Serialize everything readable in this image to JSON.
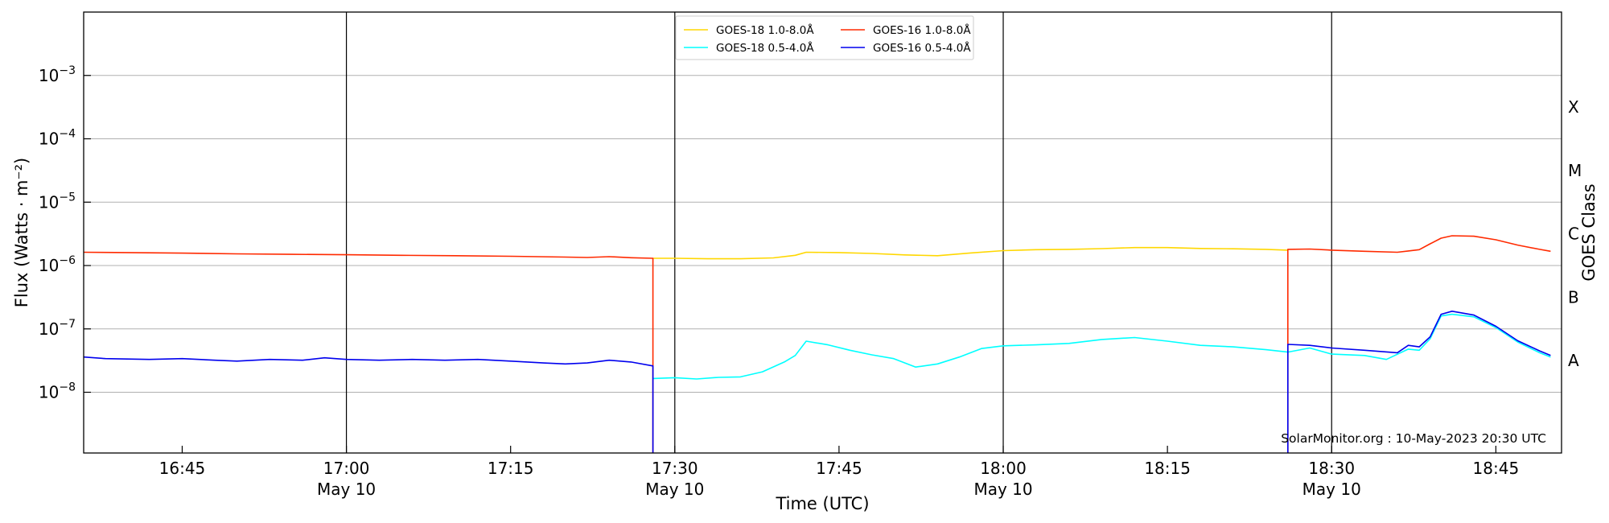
{
  "chart_data": {
    "type": "line",
    "title": "",
    "xlabel": "Time (UTC)",
    "ylabel": "Flux (Watts · m⁻²)",
    "y2label": "GOES Class",
    "yscale": "log",
    "ylim": [
      1.1e-09,
      0.01
    ],
    "x_start": "16:36",
    "x_end": "18:51",
    "grid": "horizontal",
    "legend_position": "top-center",
    "credit": "SolarMonitor.org : 10-May-2023 20:30 UTC",
    "x_ticks": [
      {
        "time": "16:45",
        "label": "16:45",
        "sublabel": ""
      },
      {
        "time": "17:00",
        "label": "17:00",
        "sublabel": "May 10"
      },
      {
        "time": "17:15",
        "label": "17:15",
        "sublabel": ""
      },
      {
        "time": "17:30",
        "label": "17:30",
        "sublabel": "May 10"
      },
      {
        "time": "17:45",
        "label": "17:45",
        "sublabel": ""
      },
      {
        "time": "18:00",
        "label": "18:00",
        "sublabel": "May 10"
      },
      {
        "time": "18:15",
        "label": "18:15",
        "sublabel": ""
      },
      {
        "time": "18:30",
        "label": "18:30",
        "sublabel": "May 10"
      },
      {
        "time": "18:45",
        "label": "18:45",
        "sublabel": ""
      }
    ],
    "vertical_lines": [
      "17:00",
      "17:30",
      "18:00",
      "18:30"
    ],
    "y_ticks": [
      {
        "value": 1e-08,
        "base": "10",
        "exp": "−8"
      },
      {
        "value": 1e-07,
        "base": "10",
        "exp": "−7"
      },
      {
        "value": 1e-06,
        "base": "10",
        "exp": "−6"
      },
      {
        "value": 1e-05,
        "base": "10",
        "exp": "−5"
      },
      {
        "value": 0.0001,
        "base": "10",
        "exp": "−4"
      },
      {
        "value": 0.001,
        "base": "10",
        "exp": "−3"
      }
    ],
    "goes_classes": [
      {
        "label": "A",
        "value": 3.16e-08
      },
      {
        "label": "B",
        "value": 3.16e-07
      },
      {
        "label": "C",
        "value": 3.16e-06
      },
      {
        "label": "M",
        "value": 3.16e-05
      },
      {
        "label": "X",
        "value": 0.000316
      }
    ],
    "series": [
      {
        "name": "GOES-18 1.0-8.0Å",
        "color": "#ffd700",
        "points": [
          [
            "17:28",
            1.3e-06
          ],
          [
            "17:30",
            1.3e-06
          ],
          [
            "17:33",
            1.28e-06
          ],
          [
            "17:36",
            1.28e-06
          ],
          [
            "17:39",
            1.32e-06
          ],
          [
            "17:41",
            1.45e-06
          ],
          [
            "17:42",
            1.62e-06
          ],
          [
            "17:45",
            1.6e-06
          ],
          [
            "17:48",
            1.55e-06
          ],
          [
            "17:51",
            1.47e-06
          ],
          [
            "17:54",
            1.43e-06
          ],
          [
            "17:57",
            1.58e-06
          ],
          [
            "18:00",
            1.72e-06
          ],
          [
            "18:03",
            1.78e-06
          ],
          [
            "18:06",
            1.8e-06
          ],
          [
            "18:09",
            1.85e-06
          ],
          [
            "18:12",
            1.92e-06
          ],
          [
            "18:15",
            1.92e-06
          ],
          [
            "18:18",
            1.86e-06
          ],
          [
            "18:21",
            1.84e-06
          ],
          [
            "18:24",
            1.8e-06
          ],
          [
            "18:26",
            1.75e-06
          ]
        ]
      },
      {
        "name": "GOES-18 0.5-4.0Å",
        "color": "#00ffff",
        "points": [
          [
            "17:28",
            1.65e-08
          ],
          [
            "17:30",
            1.7e-08
          ],
          [
            "17:32",
            1.62e-08
          ],
          [
            "17:34",
            1.72e-08
          ],
          [
            "17:36",
            1.75e-08
          ],
          [
            "17:38",
            2.1e-08
          ],
          [
            "17:40",
            3e-08
          ],
          [
            "17:41",
            3.8e-08
          ],
          [
            "17:42",
            6.4e-08
          ],
          [
            "17:44",
            5.6e-08
          ],
          [
            "17:46",
            4.6e-08
          ],
          [
            "17:48",
            3.9e-08
          ],
          [
            "17:50",
            3.4e-08
          ],
          [
            "17:52",
            2.5e-08
          ],
          [
            "17:54",
            2.8e-08
          ],
          [
            "17:56",
            3.6e-08
          ],
          [
            "17:58",
            4.9e-08
          ],
          [
            "18:00",
            5.4e-08
          ],
          [
            "18:03",
            5.6e-08
          ],
          [
            "18:06",
            5.9e-08
          ],
          [
            "18:09",
            6.8e-08
          ],
          [
            "18:12",
            7.3e-08
          ],
          [
            "18:15",
            6.4e-08
          ],
          [
            "18:18",
            5.5e-08
          ],
          [
            "18:21",
            5.2e-08
          ],
          [
            "18:24",
            4.7e-08
          ],
          [
            "18:26",
            4.3e-08
          ],
          [
            "18:28",
            5e-08
          ],
          [
            "18:30",
            4e-08
          ],
          [
            "18:33",
            3.8e-08
          ],
          [
            "18:35",
            3.3e-08
          ],
          [
            "18:37",
            4.8e-08
          ],
          [
            "18:38",
            4.6e-08
          ],
          [
            "18:39",
            7e-08
          ],
          [
            "18:40",
            1.6e-07
          ],
          [
            "18:41",
            1.7e-07
          ],
          [
            "18:43",
            1.55e-07
          ],
          [
            "18:45",
            1.05e-07
          ],
          [
            "18:47",
            6.2e-08
          ],
          [
            "18:49",
            4.2e-08
          ],
          [
            "18:50",
            3.6e-08
          ]
        ]
      },
      {
        "name": "GOES-16 1.0-8.0Å",
        "color": "#ff2a00",
        "segments": [
          [
            [
              "16:36",
              1.62e-06
            ],
            [
              "16:40",
              1.6e-06
            ],
            [
              "16:45",
              1.57e-06
            ],
            [
              "16:50",
              1.53e-06
            ],
            [
              "16:55",
              1.5e-06
            ],
            [
              "17:00",
              1.48e-06
            ],
            [
              "17:05",
              1.45e-06
            ],
            [
              "17:10",
              1.43e-06
            ],
            [
              "17:15",
              1.4e-06
            ],
            [
              "17:20",
              1.36e-06
            ],
            [
              "17:22",
              1.34e-06
            ],
            [
              "17:24",
              1.38e-06
            ],
            [
              "17:26",
              1.33e-06
            ],
            [
              "17:28",
              1.3e-06
            ],
            [
              "17:28",
              1.1e-09
            ]
          ],
          [
            [
              "18:26",
              1.1e-09
            ],
            [
              "18:26",
              1.8e-06
            ],
            [
              "18:28",
              1.82e-06
            ],
            [
              "18:30",
              1.75e-06
            ],
            [
              "18:33",
              1.68e-06
            ],
            [
              "18:36",
              1.62e-06
            ],
            [
              "18:37",
              1.7e-06
            ],
            [
              "18:38",
              1.78e-06
            ],
            [
              "18:39",
              2.2e-06
            ],
            [
              "18:40",
              2.7e-06
            ],
            [
              "18:41",
              2.95e-06
            ],
            [
              "18:43",
              2.9e-06
            ],
            [
              "18:45",
              2.55e-06
            ],
            [
              "18:47",
              2.1e-06
            ],
            [
              "18:49",
              1.8e-06
            ],
            [
              "18:50",
              1.68e-06
            ]
          ]
        ]
      },
      {
        "name": "GOES-16 0.5-4.0Å",
        "color": "#0000ee",
        "segments": [
          [
            [
              "16:36",
              3.6e-08
            ],
            [
              "16:38",
              3.4e-08
            ],
            [
              "16:42",
              3.3e-08
            ],
            [
              "16:45",
              3.4e-08
            ],
            [
              "16:48",
              3.2e-08
            ],
            [
              "16:50",
              3.1e-08
            ],
            [
              "16:53",
              3.3e-08
            ],
            [
              "16:56",
              3.2e-08
            ],
            [
              "16:58",
              3.5e-08
            ],
            [
              "17:00",
              3.3e-08
            ],
            [
              "17:03",
              3.2e-08
            ],
            [
              "17:06",
              3.3e-08
            ],
            [
              "17:09",
              3.2e-08
            ],
            [
              "17:12",
              3.3e-08
            ],
            [
              "17:15",
              3.1e-08
            ],
            [
              "17:18",
              2.9e-08
            ],
            [
              "17:20",
              2.8e-08
            ],
            [
              "17:22",
              2.9e-08
            ],
            [
              "17:24",
              3.2e-08
            ],
            [
              "17:26",
              3e-08
            ],
            [
              "17:28",
              2.6e-08
            ],
            [
              "17:28",
              1.1e-09
            ]
          ],
          [
            [
              "18:26",
              1.1e-09
            ],
            [
              "18:26",
              5.7e-08
            ],
            [
              "18:28",
              5.5e-08
            ],
            [
              "18:30",
              5e-08
            ],
            [
              "18:33",
              4.6e-08
            ],
            [
              "18:36",
              4.2e-08
            ],
            [
              "18:37",
              5.5e-08
            ],
            [
              "18:38",
              5.2e-08
            ],
            [
              "18:39",
              7.5e-08
            ],
            [
              "18:40",
              1.7e-07
            ],
            [
              "18:41",
              1.9e-07
            ],
            [
              "18:43",
              1.65e-07
            ],
            [
              "18:45",
              1.1e-07
            ],
            [
              "18:47",
              6.5e-08
            ],
            [
              "18:49",
              4.5e-08
            ],
            [
              "18:50",
              3.8e-08
            ]
          ]
        ]
      }
    ]
  }
}
